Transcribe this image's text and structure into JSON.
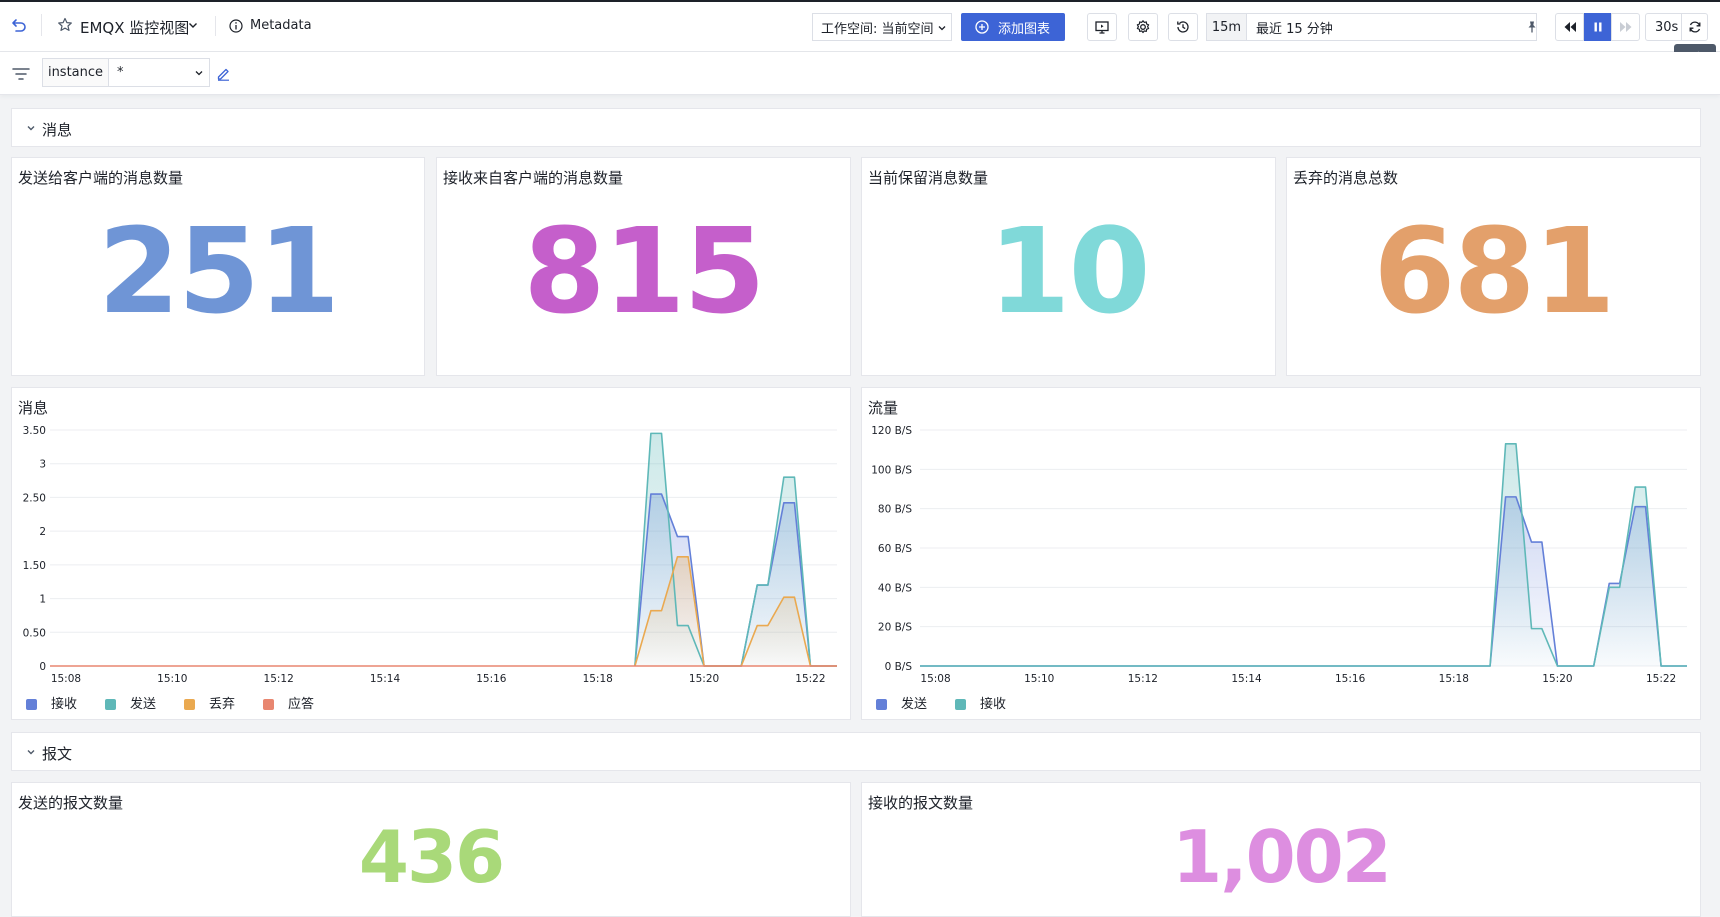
{
  "header": {
    "dashboard_title": "EMQX 监控视图",
    "metadata_label": "Metadata",
    "workspace_label": "工作空间: 当前空间",
    "add_chart_label": "添加图表",
    "time_range_short": "15m",
    "time_range_label": "最近 15 分钟",
    "refresh_interval": "30s",
    "refresh_tooltip": "刷新"
  },
  "filter": {
    "variable_name": "instance",
    "variable_value": "*"
  },
  "sections": [
    {
      "label": "消息"
    },
    {
      "label": "报文"
    }
  ],
  "stats": [
    {
      "title": "发送给客户端的消息数量",
      "value": "251",
      "color": "#6f95d6"
    },
    {
      "title": "接收来自客户端的消息数量",
      "value": "815",
      "color": "#c55fcb"
    },
    {
      "title": "当前保留消息数量",
      "value": "10",
      "color": "#80d9d9"
    },
    {
      "title": "丢弃的消息总数",
      "value": "681",
      "color": "#e3a06b"
    },
    {
      "title": "发送的报文数量",
      "value": "436",
      "color": "#a9d979"
    },
    {
      "title": "接收的报文数量",
      "value": "1,002",
      "color": "#dd8ee0"
    }
  ],
  "chart_data": [
    {
      "type": "area",
      "title": "消息",
      "x": [
        "15:08",
        "15:10",
        "15:12",
        "15:14",
        "15:16",
        "15:18",
        "15:20",
        "15:22"
      ],
      "xlim": [
        "15:07.7",
        "15:22.5"
      ],
      "ylim": [
        0,
        3.5
      ],
      "y_ticks": [
        "0",
        "0.50",
        "1",
        "1.50",
        "2",
        "2.50",
        "3",
        "3.50"
      ],
      "grid": true,
      "legend_position": "bottom-left",
      "series": [
        {
          "name": "接收",
          "color": "#6480d8",
          "points": [
            [
              "15:18.7",
              0
            ],
            [
              "15:19",
              2.55
            ],
            [
              "15:19.2",
              2.55
            ],
            [
              "15:19.5",
              1.92
            ],
            [
              "15:19.7",
              1.92
            ],
            [
              "15:20",
              0
            ],
            [
              "15:20.7",
              0
            ],
            [
              "15:21",
              1.2
            ],
            [
              "15:21.2",
              1.2
            ],
            [
              "15:21.5",
              2.42
            ],
            [
              "15:21.7",
              2.42
            ],
            [
              "15:22",
              0
            ],
            [
              "15:22.5",
              0
            ]
          ]
        },
        {
          "name": "发送",
          "color": "#5fb8b8",
          "points": [
            [
              "15:18.7",
              0
            ],
            [
              "15:19",
              3.45
            ],
            [
              "15:19.2",
              3.45
            ],
            [
              "15:19.5",
              0.6
            ],
            [
              "15:19.7",
              0.6
            ],
            [
              "15:20",
              0
            ],
            [
              "15:20.7",
              0
            ],
            [
              "15:21",
              1.2
            ],
            [
              "15:21.2",
              1.2
            ],
            [
              "15:21.5",
              2.8
            ],
            [
              "15:21.7",
              2.8
            ],
            [
              "15:22",
              0
            ],
            [
              "15:22.5",
              0
            ]
          ]
        },
        {
          "name": "丢弃",
          "color": "#eaa950",
          "points": [
            [
              "15:18.7",
              0
            ],
            [
              "15:19",
              0.82
            ],
            [
              "15:19.2",
              0.82
            ],
            [
              "15:19.5",
              1.62
            ],
            [
              "15:19.7",
              1.62
            ],
            [
              "15:20",
              0
            ],
            [
              "15:20.7",
              0
            ],
            [
              "15:21",
              0.6
            ],
            [
              "15:21.2",
              0.6
            ],
            [
              "15:21.5",
              1.02
            ],
            [
              "15:21.7",
              1.02
            ],
            [
              "15:22",
              0
            ],
            [
              "15:22.5",
              0
            ]
          ]
        },
        {
          "name": "应答",
          "color": "#e88670",
          "points": [
            [
              "15:07.7",
              0
            ],
            [
              "15:22.5",
              0
            ]
          ]
        }
      ]
    },
    {
      "type": "area",
      "title": "流量",
      "x": [
        "15:08",
        "15:10",
        "15:12",
        "15:14",
        "15:16",
        "15:18",
        "15:20",
        "15:22"
      ],
      "xlim": [
        "15:07.7",
        "15:22.5"
      ],
      "ylim": [
        0,
        120
      ],
      "y_ticks": [
        "0 B/S",
        "20 B/S",
        "40 B/S",
        "60 B/S",
        "80 B/S",
        "100 B/S",
        "120 B/S"
      ],
      "grid": true,
      "legend_position": "bottom-left",
      "series": [
        {
          "name": "发送",
          "color": "#6480d8",
          "points": [
            [
              "15:07.7",
              0
            ],
            [
              "15:18.7",
              0
            ],
            [
              "15:19",
              86
            ],
            [
              "15:19.2",
              86
            ],
            [
              "15:19.5",
              63
            ],
            [
              "15:19.7",
              63
            ],
            [
              "15:20",
              0
            ],
            [
              "15:20.7",
              0
            ],
            [
              "15:21",
              42
            ],
            [
              "15:21.2",
              42
            ],
            [
              "15:21.5",
              81
            ],
            [
              "15:21.7",
              81
            ],
            [
              "15:22",
              0
            ],
            [
              "15:22.5",
              0
            ]
          ]
        },
        {
          "name": "接收",
          "color": "#5fb8b8",
          "points": [
            [
              "15:07.7",
              0
            ],
            [
              "15:18.7",
              0
            ],
            [
              "15:19",
              113
            ],
            [
              "15:19.2",
              113
            ],
            [
              "15:19.5",
              19
            ],
            [
              "15:19.7",
              19
            ],
            [
              "15:20",
              0
            ],
            [
              "15:20.7",
              0
            ],
            [
              "15:21",
              40
            ],
            [
              "15:21.2",
              40
            ],
            [
              "15:21.5",
              91
            ],
            [
              "15:21.7",
              91
            ],
            [
              "15:22",
              0
            ],
            [
              "15:22.5",
              0
            ]
          ]
        }
      ]
    }
  ]
}
